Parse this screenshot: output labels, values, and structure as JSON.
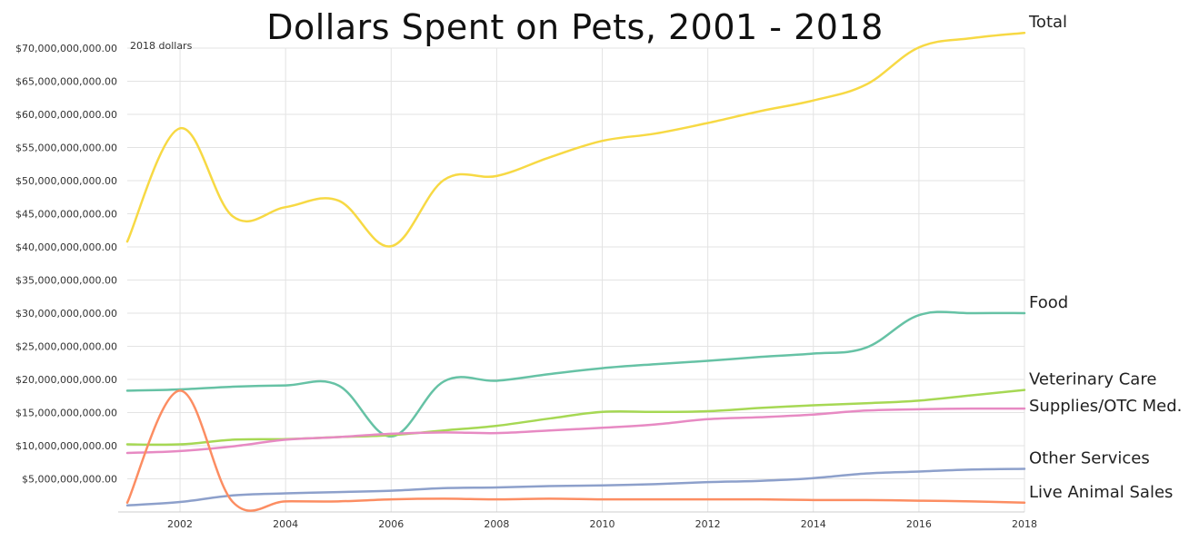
{
  "chart_data": {
    "type": "line",
    "title": "Dollars Spent on Pets, 2001 - 2018",
    "annotation": "2018 dollars",
    "xlabel": "",
    "ylabel": "",
    "xlim": [
      2001,
      2018
    ],
    "ylim": [
      0,
      70000000000
    ],
    "grid": true,
    "legend": "direct labels at right end of lines",
    "x_ticks": [
      2002,
      2004,
      2006,
      2008,
      2010,
      2012,
      2014,
      2016,
      2018
    ],
    "y_ticks": [
      {
        "value": 5000000000,
        "label": "$5,000,000,000.00"
      },
      {
        "value": 10000000000,
        "label": "$10,000,000,000.00"
      },
      {
        "value": 15000000000,
        "label": "$15,000,000,000.00"
      },
      {
        "value": 20000000000,
        "label": "$20,000,000,000.00"
      },
      {
        "value": 25000000000,
        "label": "$25,000,000,000.00"
      },
      {
        "value": 30000000000,
        "label": "$30,000,000,000.00"
      },
      {
        "value": 35000000000,
        "label": "$35,000,000,000.00"
      },
      {
        "value": 40000000000,
        "label": "$40,000,000,000.00"
      },
      {
        "value": 45000000000,
        "label": "$45,000,000,000.00"
      },
      {
        "value": 50000000000,
        "label": "$50,000,000,000.00"
      },
      {
        "value": 55000000000,
        "label": "$55,000,000,000.00"
      },
      {
        "value": 60000000000,
        "label": "$60,000,000,000.00"
      },
      {
        "value": 65000000000,
        "label": "$65,000,000,000.00"
      },
      {
        "value": 70000000000,
        "label": "$70,000,000,000.00"
      }
    ],
    "x": [
      2001,
      2002,
      2003,
      2004,
      2005,
      2006,
      2007,
      2008,
      2009,
      2010,
      2011,
      2012,
      2013,
      2014,
      2015,
      2016,
      2017,
      2018
    ],
    "series": [
      {
        "name": "Total",
        "color": "#f7d944",
        "values": [
          40800000000,
          57900000000,
          44600000000,
          46000000000,
          47000000000,
          40100000000,
          50100000000,
          50700000000,
          53500000000,
          56000000000,
          57100000000,
          58700000000,
          60500000000,
          62100000000,
          64500000000,
          70100000000,
          71500000000,
          72300000000
        ]
      },
      {
        "name": "Food",
        "color": "#66c2a5",
        "values": [
          18300000000,
          18500000000,
          18900000000,
          19100000000,
          19100000000,
          11400000000,
          19700000000,
          19800000000,
          20800000000,
          21700000000,
          22300000000,
          22800000000,
          23400000000,
          23900000000,
          24800000000,
          29700000000,
          30000000000,
          30000000000
        ]
      },
      {
        "name": "Veterinary Care",
        "color": "#a6d854",
        "values": [
          10200000000,
          10200000000,
          10900000000,
          11000000000,
          11300000000,
          11600000000,
          12300000000,
          13000000000,
          14100000000,
          15100000000,
          15100000000,
          15200000000,
          15700000000,
          16100000000,
          16400000000,
          16800000000,
          17600000000,
          18400000000
        ]
      },
      {
        "name": "Supplies/OTC Med.",
        "color": "#e78ac3",
        "values": [
          8900000000,
          9200000000,
          9900000000,
          10900000000,
          11300000000,
          11800000000,
          12000000000,
          11900000000,
          12300000000,
          12700000000,
          13200000000,
          14000000000,
          14300000000,
          14700000000,
          15300000000,
          15500000000,
          15600000000,
          15600000000
        ]
      },
      {
        "name": "Other Services",
        "color": "#8da0cb",
        "values": [
          1000000000,
          1500000000,
          2500000000,
          2800000000,
          3000000000,
          3200000000,
          3600000000,
          3700000000,
          3900000000,
          4000000000,
          4200000000,
          4500000000,
          4700000000,
          5100000000,
          5800000000,
          6100000000,
          6400000000,
          6500000000
        ]
      },
      {
        "name": "Live Animal Sales",
        "color": "#fc8d62",
        "values": [
          1400000000,
          18300000000,
          1500000000,
          1600000000,
          1600000000,
          1900000000,
          2000000000,
          1900000000,
          2000000000,
          1900000000,
          1900000000,
          1900000000,
          1900000000,
          1800000000,
          1800000000,
          1700000000,
          1600000000,
          1400000000
        ]
      }
    ]
  }
}
